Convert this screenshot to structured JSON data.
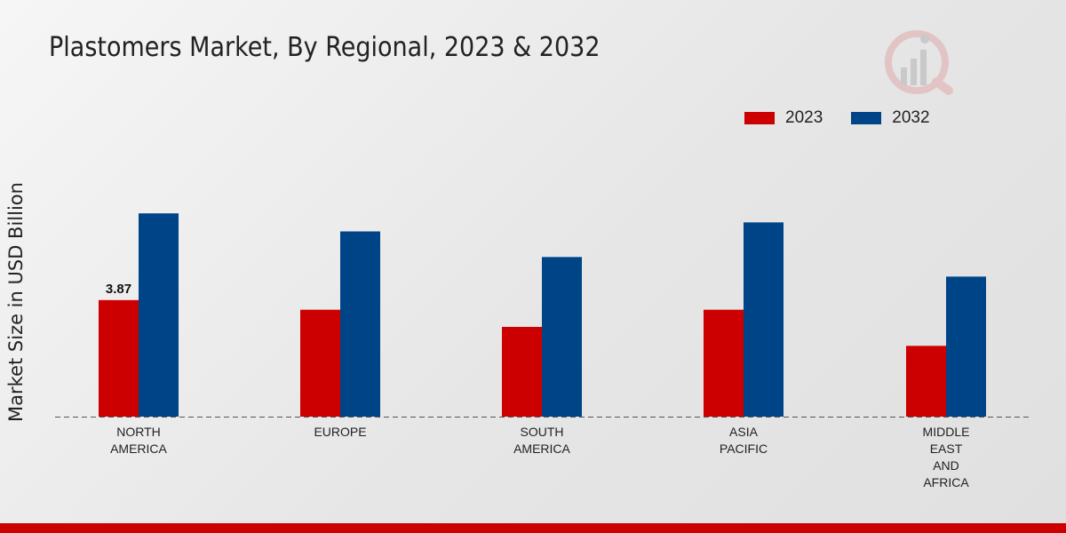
{
  "colors": {
    "series_2023": "#cc0000",
    "series_2032": "#004488",
    "footer": "#cc0000"
  },
  "logo_icon": "market-research-logo-icon",
  "chart_data": {
    "type": "bar",
    "title": "Plastomers Market, By Regional, 2023 & 2032",
    "xlabel": "",
    "ylabel": "Market Size in USD Billion",
    "ylim": [
      0,
      10
    ],
    "categories": [
      [
        "NORTH",
        "AMERICA"
      ],
      [
        "EUROPE"
      ],
      [
        "SOUTH",
        "AMERICA"
      ],
      [
        "ASIA",
        "PACIFIC"
      ],
      [
        "MIDDLE",
        "EAST",
        "AND",
        "AFRICA"
      ]
    ],
    "series": [
      {
        "name": "2023",
        "color": "#cc0000",
        "values": [
          3.87,
          3.55,
          2.98,
          3.55,
          2.35
        ]
      },
      {
        "name": "2032",
        "color": "#004488",
        "values": [
          6.75,
          6.15,
          5.3,
          6.45,
          4.65
        ]
      }
    ],
    "data_labels": [
      {
        "series": 0,
        "index": 0,
        "text": "3.87"
      }
    ],
    "legend": "top-right"
  }
}
